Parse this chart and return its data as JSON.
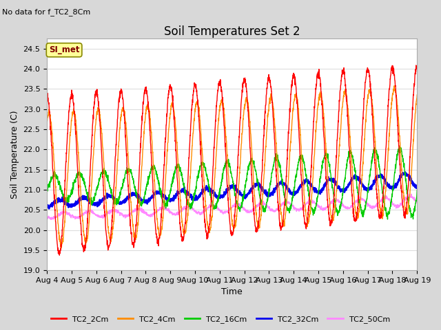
{
  "title": "Soil Temperatures Set 2",
  "subtitle": "No data for f_TC2_8Cm",
  "ylabel": "Soil Temperature (C)",
  "xlabel": "Time",
  "ylim": [
    19.0,
    24.75
  ],
  "yticks": [
    19.0,
    19.5,
    20.0,
    20.5,
    21.0,
    21.5,
    22.0,
    22.5,
    23.0,
    23.5,
    24.0,
    24.5
  ],
  "xtick_labels": [
    "Aug 4",
    "Aug 5",
    "Aug 6",
    "Aug 7",
    "Aug 8",
    "Aug 9",
    "Aug 10",
    "Aug 11",
    "Aug 12",
    "Aug 13",
    "Aug 14",
    "Aug 15",
    "Aug 16",
    "Aug 17",
    "Aug 18",
    "Aug 19"
  ],
  "n_days": 15,
  "points_per_day": 144,
  "series_colors": {
    "TC2_2Cm": "#FF0000",
    "TC2_4Cm": "#FF8C00",
    "TC2_16Cm": "#00CC00",
    "TC2_32Cm": "#0000EE",
    "TC2_50Cm": "#FF88FF"
  },
  "series_linewidths": {
    "TC2_2Cm": 1.0,
    "TC2_4Cm": 1.0,
    "TC2_16Cm": 1.0,
    "TC2_32Cm": 1.8,
    "TC2_50Cm": 1.0
  },
  "legend_box_color": "#FFFF99",
  "legend_box_text": "SI_met",
  "legend_box_text_color": "#800000",
  "plot_bg_color": "#FFFFFF",
  "fig_bg_color": "#D8D8D8",
  "grid_color": "#DDDDDD",
  "title_fontsize": 12,
  "axis_fontsize": 9,
  "tick_fontsize": 8
}
